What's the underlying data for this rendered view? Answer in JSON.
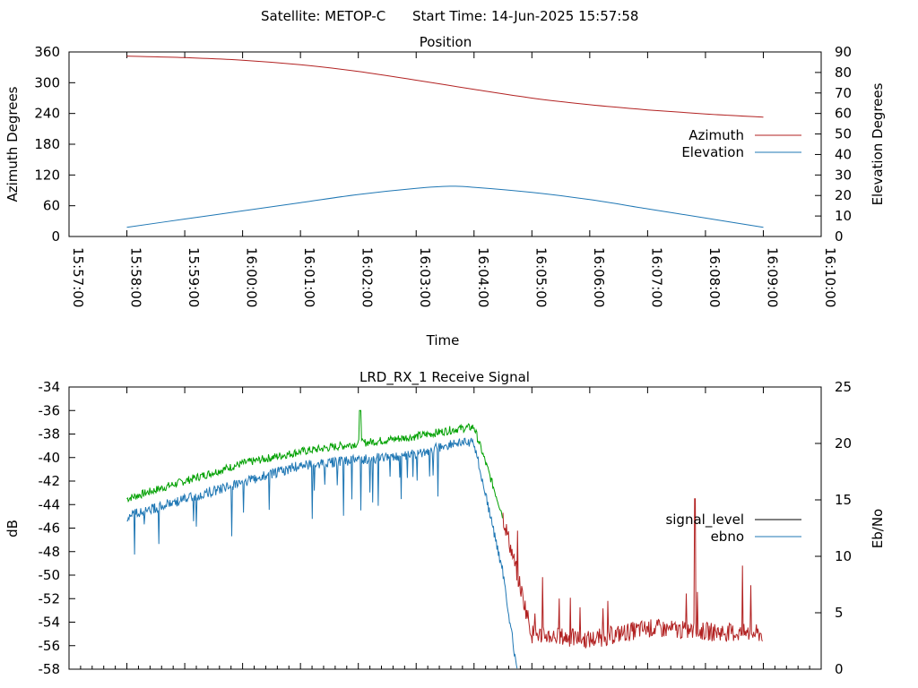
{
  "title": {
    "satellite": "Satellite: METOP-C",
    "start_time": "Start Time: 14-Jun-2025 15:57:58"
  },
  "colors": {
    "azimuth": "#b22222",
    "elevation": "#1f77b4",
    "signal_level": "#000000",
    "signal_green": "#00a000",
    "ebno": "#1f77b4",
    "noise": "#b22222"
  },
  "chart_data": [
    {
      "type": "line",
      "title": "Position",
      "xlabel": "Time",
      "ylabel": "Azimuth Degrees",
      "y2label": "Elevation Degrees",
      "xticks": [
        "15:57:00",
        "15:58:00",
        "15:59:00",
        "16:00:00",
        "16:01:00",
        "16:02:00",
        "16:03:00",
        "16:04:00",
        "16:05:00",
        "16:06:00",
        "16:07:00",
        "16:08:00",
        "16:09:00",
        "16:10:00"
      ],
      "xlim_minutes": [
        0,
        13
      ],
      "ylim": [
        0,
        360
      ],
      "yticks": [
        0,
        60,
        120,
        180,
        240,
        300,
        360
      ],
      "y2lim": [
        0,
        90
      ],
      "y2ticks": [
        0,
        10,
        20,
        30,
        40,
        50,
        60,
        70,
        80,
        90
      ],
      "grid": false,
      "legend_position": "right",
      "series": [
        {
          "name": "Azimuth",
          "axis": "left",
          "x": [
            "15:58:00",
            "15:59:00",
            "16:00:00",
            "16:01:00",
            "16:02:00",
            "16:03:00",
            "16:04:00",
            "16:05:00",
            "16:06:00",
            "16:07:00",
            "16:08:00",
            "16:09:00"
          ],
          "values": [
            352,
            349,
            344,
            335,
            322,
            305,
            287,
            270,
            257,
            247,
            239,
            233
          ]
        },
        {
          "name": "Elevation",
          "axis": "right",
          "x": [
            "15:58:00",
            "15:59:00",
            "16:00:00",
            "16:01:00",
            "16:02:00",
            "16:03:00",
            "16:03:35",
            "16:04:00",
            "16:05:00",
            "16:06:00",
            "16:07:00",
            "16:08:00",
            "16:09:00"
          ],
          "values": [
            4.5,
            8.5,
            12.5,
            16.5,
            20.5,
            23.5,
            24.5,
            24,
            21.5,
            18,
            13.5,
            9,
            4.5
          ]
        }
      ]
    },
    {
      "type": "line",
      "title": "LRD_RX_1 Receive Signal",
      "ylabel": "dB",
      "y2label": "Eb/No",
      "xlim_minutes": [
        0,
        13
      ],
      "ylim": [
        -58,
        -34
      ],
      "yticks": [
        -58,
        -56,
        -54,
        -52,
        -50,
        -48,
        -46,
        -44,
        -42,
        -40,
        -38,
        -36,
        -34
      ],
      "y2lim": [
        0,
        25
      ],
      "y2ticks": [
        0,
        5,
        10,
        15,
        20,
        25
      ],
      "grid": false,
      "legend_position": "right",
      "legend": [
        "signal_level",
        "ebno"
      ],
      "series": [
        {
          "name": "signal_level",
          "axis": "left",
          "x": [
            "15:58:00",
            "15:59:00",
            "16:00:00",
            "16:01:00",
            "16:02:00",
            "16:03:00",
            "16:03:40",
            "16:04:00",
            "16:04:30",
            "16:05:00",
            "16:06:00",
            "16:07:00",
            "16:08:00",
            "16:09:00"
          ],
          "values": [
            -43.5,
            -42,
            -40.5,
            -39.5,
            -38.8,
            -38.2,
            -37.6,
            -37.4,
            -45,
            -55,
            -55.5,
            -54.5,
            -54.8,
            -55
          ]
        },
        {
          "name": "ebno",
          "axis": "right",
          "x": [
            "15:58:00",
            "15:59:00",
            "16:00:00",
            "16:01:00",
            "16:02:00",
            "16:03:00",
            "16:03:40",
            "16:04:00",
            "16:04:30",
            "16:04:45"
          ],
          "values": [
            14,
            15.5,
            17,
            18.5,
            19,
            19.5,
            20.5,
            20.5,
            9,
            0
          ]
        }
      ]
    }
  ]
}
